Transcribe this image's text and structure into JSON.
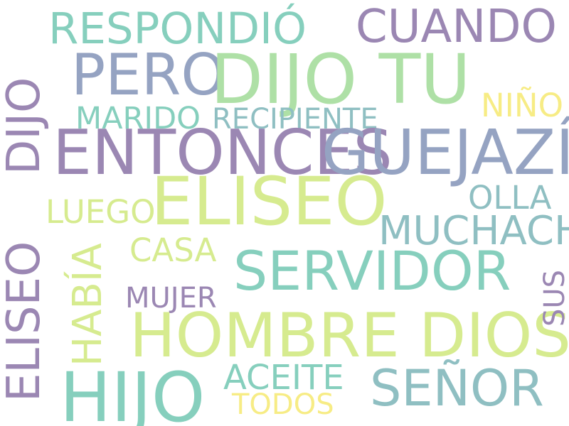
{
  "colors": {
    "background": "#ffffff",
    "purple": "#9b87b3",
    "slate": "#95a3c2",
    "teal": "#86cfbd",
    "green": "#aee0a6",
    "lime": "#d6eb8f",
    "blueteal": "#8fbfc2",
    "yellow": "#f7ec85"
  },
  "words": {
    "respondio": "RESPONDIÓ",
    "cuando": "CUANDO",
    "dijo_vertical": "DIJO",
    "pero": "PERO",
    "dijo_tu": "DIJO TU",
    "nino": "NIÑO",
    "marido": "MARIDO",
    "recipiente": "RECIPIENTE",
    "entonces": "ENTONCES",
    "guejazi": "GUEJAZÍ",
    "eliseo_vertical": "ELISEO",
    "eliseo": "ELISEO",
    "luego": "LUEGO",
    "olla": "OLLA",
    "habia": "HABÍA",
    "muchacho": "MUCHACHO",
    "casa": "CASA",
    "servidor": "SERVIDOR",
    "sus": "SUS",
    "mujer": "MUJER",
    "hombre_dios": "HOMBRE DIOS",
    "aceite": "ACEITE",
    "hijo": "HIJO",
    "senor": "SEÑOR",
    "todos": "TODOS"
  }
}
